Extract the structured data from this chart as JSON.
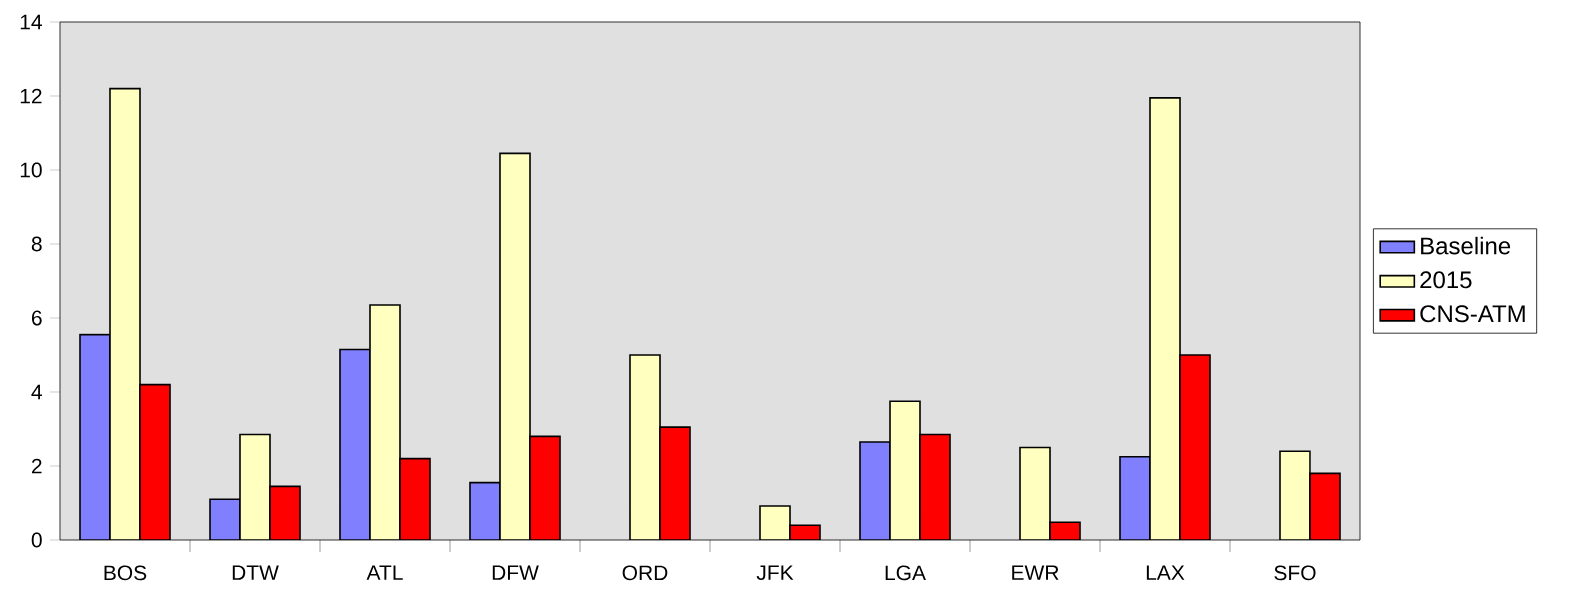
{
  "chart_data": {
    "type": "bar",
    "categories": [
      "BOS",
      "DTW",
      "ATL",
      "DFW",
      "ORD",
      "JFK",
      "LGA",
      "EWR",
      "LAX",
      "SFO"
    ],
    "series": [
      {
        "name": "Baseline",
        "color": "#8080ff",
        "values": [
          5.55,
          1.1,
          5.15,
          1.55,
          null,
          null,
          2.65,
          null,
          2.25,
          null
        ]
      },
      {
        "name": "2015",
        "color": "#ffffc0",
        "values": [
          12.2,
          2.85,
          6.35,
          10.45,
          5.0,
          0.92,
          3.75,
          2.5,
          11.95,
          2.4
        ]
      },
      {
        "name": "CNS-ATM",
        "color": "#ff0000",
        "values": [
          4.2,
          1.45,
          2.2,
          2.8,
          3.05,
          0.4,
          2.85,
          0.48,
          5.0,
          1.8
        ]
      }
    ],
    "ylim": [
      0,
      14
    ],
    "yticks": [
      0,
      2,
      4,
      6,
      8,
      10,
      12,
      14
    ],
    "grid": false,
    "legend": "right"
  }
}
